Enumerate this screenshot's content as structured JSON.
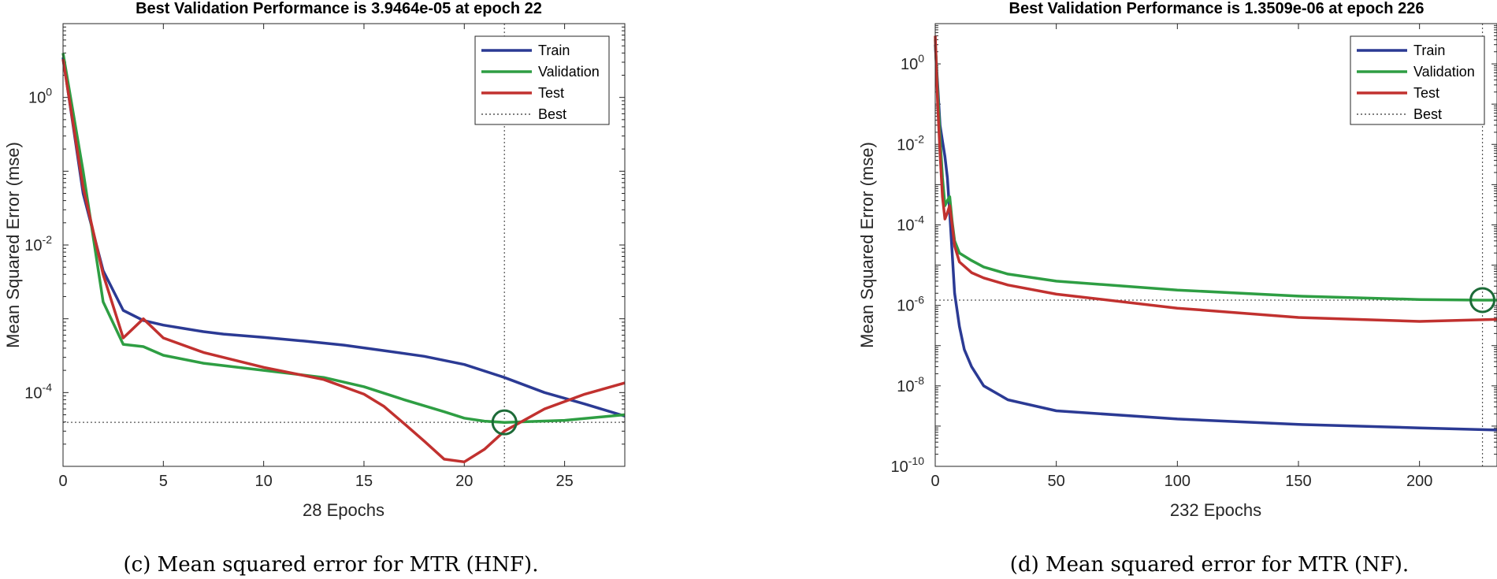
{
  "chart_data": [
    {
      "type": "line",
      "title": "Best Validation Performance is 3.9464e-05 at epoch 22",
      "xlabel": "28 Epochs",
      "ylabel": "Mean Squared Error  (mse)",
      "yscale": "log",
      "xlim": [
        0,
        28
      ],
      "ylim": [
        1e-05,
        10
      ],
      "xticks": [
        0,
        5,
        10,
        15,
        20,
        25
      ],
      "yticks": [
        {
          "base": "10",
          "exp": "0",
          "value": 1
        },
        {
          "base": "10",
          "exp": "-2",
          "value": 0.01
        },
        {
          "base": "10",
          "exp": "-4",
          "value": 0.0001
        }
      ],
      "legend": [
        "Train",
        "Validation",
        "Test",
        "Best"
      ],
      "best": {
        "epoch": 22,
        "value": 3.9464e-05
      },
      "series": [
        {
          "name": "Train",
          "color": "#2b3a94",
          "x": [
            0,
            1,
            2,
            3,
            4,
            5,
            6,
            7,
            8,
            10,
            12,
            14,
            16,
            18,
            20,
            22,
            24,
            26,
            28
          ],
          "y": [
            3.5,
            0.05,
            0.0045,
            0.0013,
            0.00095,
            0.00082,
            0.00074,
            0.00067,
            0.00062,
            0.00056,
            0.0005,
            0.00044,
            0.00037,
            0.00031,
            0.00024,
            0.00016,
            0.0001,
            7e-05,
            4.8e-05
          ]
        },
        {
          "name": "Validation",
          "color": "#2e9e43",
          "x": [
            0,
            1,
            2,
            3,
            4,
            5,
            7,
            10,
            13,
            15,
            17,
            19,
            20,
            21,
            22,
            25,
            28
          ],
          "y": [
            4.0,
            0.1,
            0.0017,
            0.00045,
            0.00042,
            0.00032,
            0.00025,
            0.0002,
            0.00016,
            0.00012,
            8e-05,
            5.5e-05,
            4.5e-05,
            4.1e-05,
            3.9464e-05,
            4.2e-05,
            5e-05
          ]
        },
        {
          "name": "Test",
          "color": "#c1312f",
          "x": [
            0,
            1,
            2,
            3,
            4,
            5,
            7,
            10,
            13,
            15,
            16,
            17,
            18,
            19,
            20,
            21,
            22,
            24,
            26,
            28
          ],
          "y": [
            3.3,
            0.06,
            0.004,
            0.00055,
            0.001,
            0.00055,
            0.00035,
            0.00022,
            0.00015,
            9.5e-05,
            6.5e-05,
            3.8e-05,
            2.2e-05,
            1.25e-05,
            1.15e-05,
            1.7e-05,
            3e-05,
            6e-05,
            9.5e-05,
            0.000135
          ]
        }
      ]
    },
    {
      "type": "line",
      "title": "Best Validation Performance is 1.3509e-06 at epoch 226",
      "xlabel": "232 Epochs",
      "ylabel": "Mean Squared Error  (mse)",
      "yscale": "log",
      "xlim": [
        0,
        232
      ],
      "ylim": [
        1e-10,
        10
      ],
      "xticks": [
        0,
        50,
        100,
        150,
        200
      ],
      "yticks": [
        {
          "base": "10",
          "exp": "0",
          "value": 1
        },
        {
          "base": "10",
          "exp": "-2",
          "value": 0.01
        },
        {
          "base": "10",
          "exp": "-4",
          "value": 0.0001
        },
        {
          "base": "10",
          "exp": "-6",
          "value": 1e-06
        },
        {
          "base": "10",
          "exp": "-8",
          "value": 1e-08
        },
        {
          "base": "10",
          "exp": "-10",
          "value": 1e-10
        }
      ],
      "legend": [
        "Train",
        "Validation",
        "Test",
        "Best"
      ],
      "best": {
        "epoch": 226,
        "value": 1.3509e-06
      },
      "series": [
        {
          "name": "Train",
          "color": "#2b3a94",
          "x": [
            0,
            1,
            2,
            3,
            4,
            5,
            6,
            7,
            8,
            10,
            12,
            15,
            20,
            30,
            50,
            100,
            150,
            200,
            232
          ],
          "y": [
            3.0,
            0.3,
            0.03,
            0.012,
            0.005,
            0.0015,
            0.0002,
            2e-05,
            2e-06,
            3e-07,
            8e-08,
            3e-08,
            1e-08,
            4.5e-09,
            2.4e-09,
            1.5e-09,
            1.1e-09,
            9e-10,
            8e-10
          ]
        },
        {
          "name": "Validation",
          "color": "#2e9e43",
          "x": [
            0,
            1,
            2,
            3,
            4,
            5,
            6,
            7,
            8,
            10,
            15,
            20,
            30,
            50,
            100,
            150,
            200,
            226,
            232
          ],
          "y": [
            4.0,
            0.2,
            0.015,
            0.0015,
            0.0003,
            0.0004,
            0.0005,
            0.00012,
            4e-05,
            2e-05,
            1.3e-05,
            9e-06,
            6e-06,
            4e-06,
            2.4e-06,
            1.7e-06,
            1.4e-06,
            1.3509e-06,
            1.35e-06
          ]
        },
        {
          "name": "Test",
          "color": "#c1312f",
          "x": [
            0,
            1,
            2,
            3,
            4,
            5,
            6,
            7,
            8,
            10,
            15,
            20,
            30,
            50,
            100,
            150,
            200,
            232
          ],
          "y": [
            5.0,
            0.1,
            0.006,
            0.0005,
            0.00014,
            0.0002,
            0.0003,
            0.0001,
            3e-05,
            1.2e-05,
            6.5e-06,
            4.8e-06,
            3.2e-06,
            1.9e-06,
            8.5e-07,
            5e-07,
            4e-07,
            4.5e-07
          ]
        }
      ]
    }
  ],
  "captions": [
    "(c) Mean squared error for MTR (HNF).",
    "(d) Mean squared error for MTR (NF)."
  ]
}
